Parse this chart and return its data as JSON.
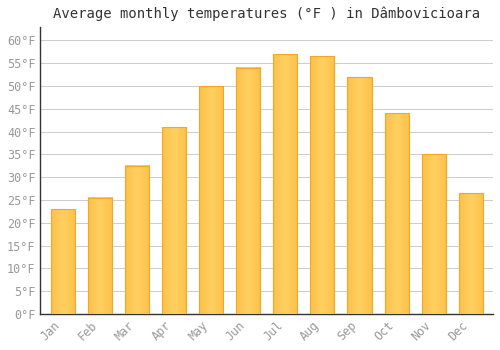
{
  "title": "Average monthly temperatures (°F ) in Dâmbovicioara",
  "months": [
    "Jan",
    "Feb",
    "Mar",
    "Apr",
    "May",
    "Jun",
    "Jul",
    "Aug",
    "Sep",
    "Oct",
    "Nov",
    "Dec"
  ],
  "values": [
    23,
    25.5,
    32.5,
    41,
    50,
    54,
    57,
    56.5,
    52,
    44,
    35,
    26.5
  ],
  "bar_color_center": "#FFD060",
  "bar_color_edge": "#F5A623",
  "background_color": "#ffffff",
  "grid_color": "#cccccc",
  "ylabel_ticks": [
    0,
    5,
    10,
    15,
    20,
    25,
    30,
    35,
    40,
    45,
    50,
    55,
    60
  ],
  "ylim": [
    0,
    63
  ],
  "title_fontsize": 10,
  "tick_fontsize": 8.5,
  "tick_color": "#999999",
  "axis_color": "#333333",
  "font_family": "monospace",
  "bar_width": 0.65
}
